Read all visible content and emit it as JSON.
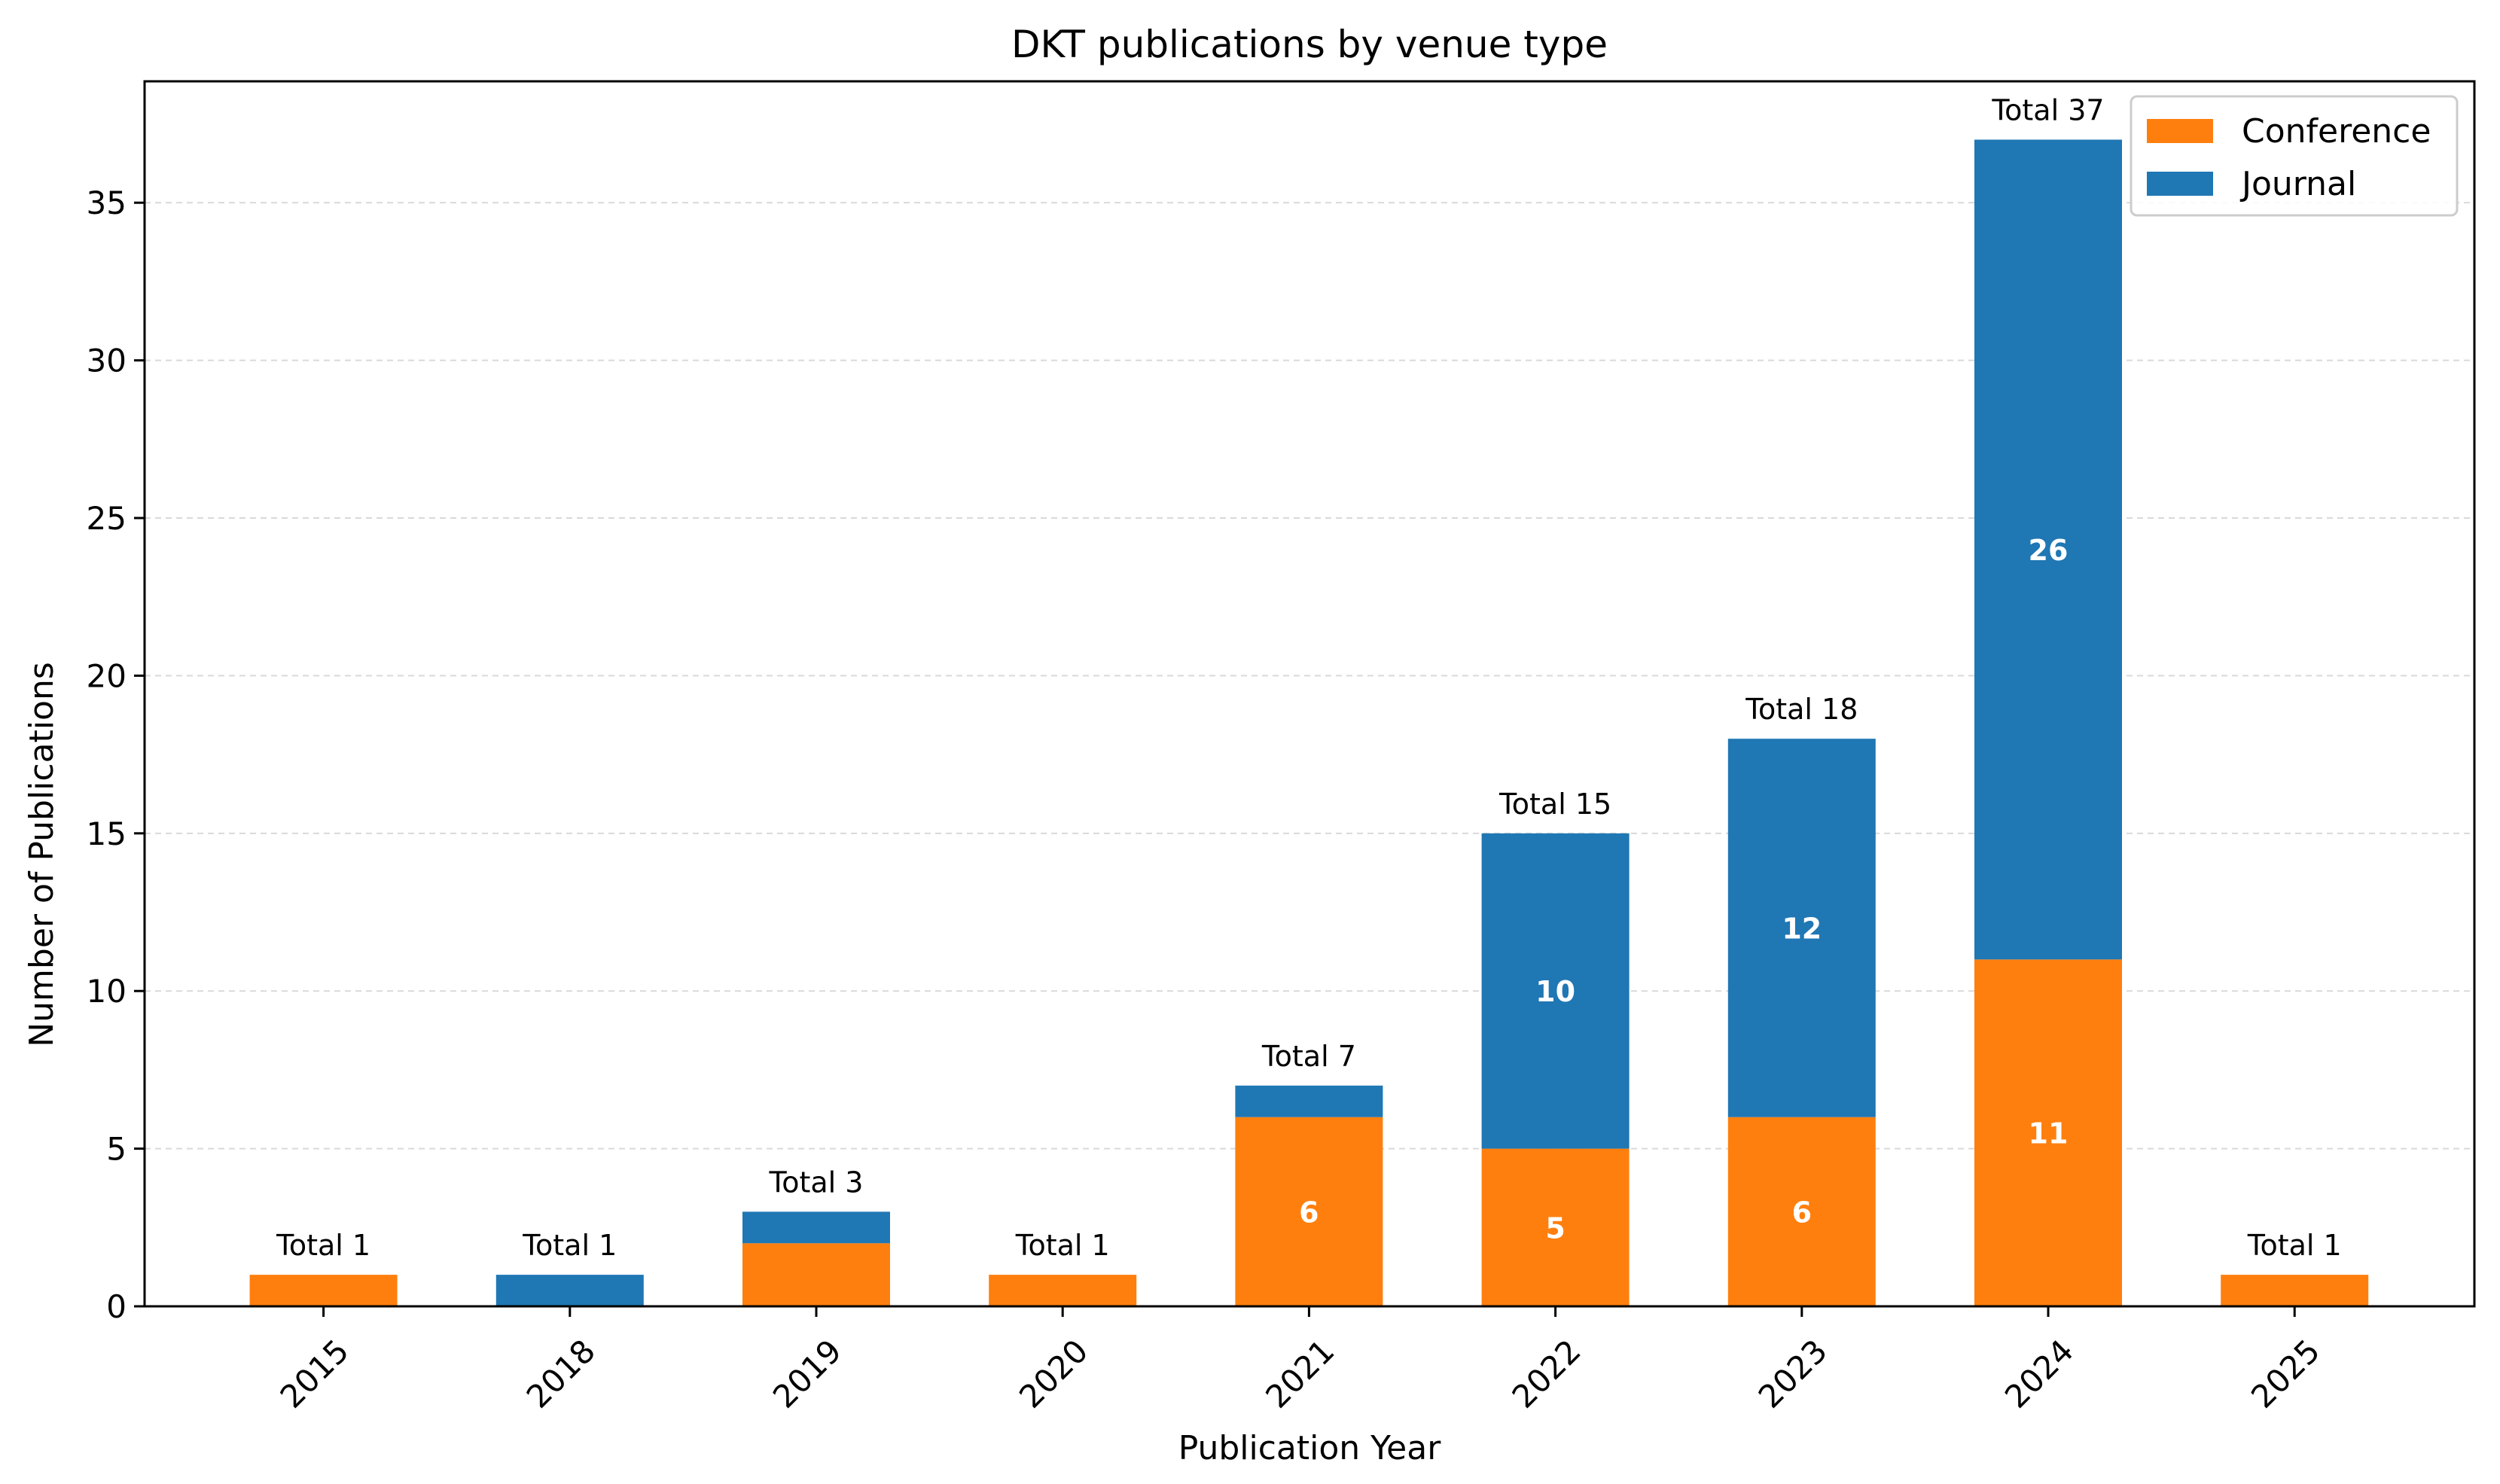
{
  "chart_data": {
    "type": "bar",
    "stacked": true,
    "title": "DKT publications by venue type",
    "xlabel": "Publication Year",
    "ylabel": "Number of Publications",
    "categories": [
      "2015",
      "2018",
      "2019",
      "2020",
      "2021",
      "2022",
      "2023",
      "2024",
      "2025"
    ],
    "series": [
      {
        "name": "Conference",
        "color": "#ff7f0e",
        "values": [
          1,
          0,
          2,
          1,
          6,
          5,
          6,
          11,
          1
        ]
      },
      {
        "name": "Journal",
        "color": "#1f77b4",
        "values": [
          0,
          1,
          1,
          0,
          1,
          10,
          12,
          26,
          0
        ]
      }
    ],
    "totals": [
      "Total 1",
      "Total 1",
      "Total 3",
      "Total 1",
      "Total 7",
      "Total 15",
      "Total 18",
      "Total 37",
      "Total 1"
    ],
    "segment_label_min": 5,
    "ylim": [
      0,
      38.85
    ],
    "yticks": [
      0,
      5,
      10,
      15,
      20,
      25,
      30,
      35
    ],
    "grid": "y-dashed",
    "legend_position": "top-right"
  }
}
